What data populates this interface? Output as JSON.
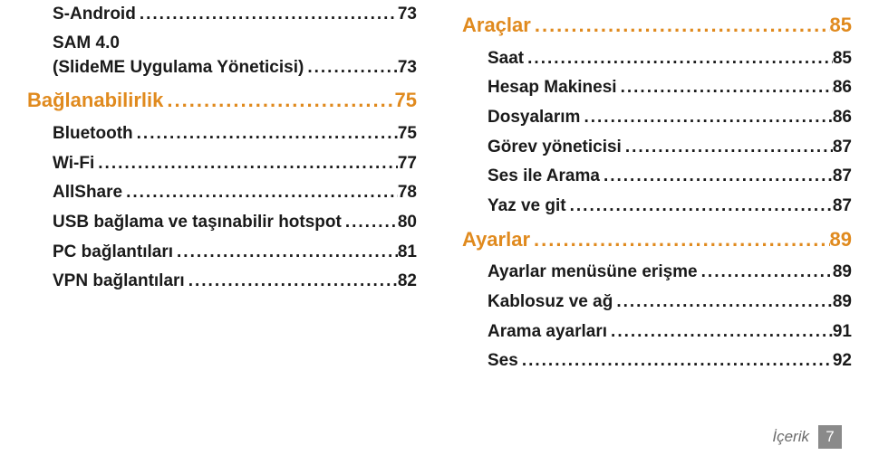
{
  "colors": {
    "sectionAccent": "#e08a1e",
    "textPrimary": "#1a1a1a",
    "footerLabel": "#6b6b6b",
    "footerBoxBg": "#8a8a8a",
    "footerBoxText": "#ffffff",
    "background": "#ffffff"
  },
  "typography": {
    "bodyFontSize": 19,
    "sectionFontSize": 22,
    "footerFontSize": 17
  },
  "dots": "........................................................................................................................",
  "left": {
    "items": [
      {
        "kind": "sub",
        "label": "S-Android",
        "page": "73"
      },
      {
        "kind": "plain",
        "label": "SAM 4.0"
      },
      {
        "kind": "sub",
        "label": "(SlideME Uygulama Yöneticisi)",
        "page": "73"
      },
      {
        "kind": "section",
        "label": "Bağlanabilirlik",
        "page": "75"
      },
      {
        "kind": "sub",
        "label": "Bluetooth",
        "page": "75"
      },
      {
        "kind": "sub",
        "label": "Wi-Fi",
        "page": "77"
      },
      {
        "kind": "sub",
        "label": "AllShare",
        "page": "78"
      },
      {
        "kind": "sub",
        "label": "USB bağlama ve taşınabilir hotspot",
        "page": "80"
      },
      {
        "kind": "sub",
        "label": "PC bağlantıları",
        "page": "81"
      },
      {
        "kind": "sub",
        "label": "VPN bağlantıları",
        "page": "82"
      }
    ]
  },
  "right": {
    "items": [
      {
        "kind": "section",
        "label": "Araçlar",
        "page": "85"
      },
      {
        "kind": "sub",
        "label": "Saat",
        "page": "85"
      },
      {
        "kind": "sub",
        "label": "Hesap Makinesi",
        "page": "86"
      },
      {
        "kind": "sub",
        "label": "Dosyalarım",
        "page": "86"
      },
      {
        "kind": "sub",
        "label": "Görev yöneticisi",
        "page": "87"
      },
      {
        "kind": "sub",
        "label": "Ses ile Arama",
        "page": "87"
      },
      {
        "kind": "sub",
        "label": "Yaz ve git",
        "page": "87"
      },
      {
        "kind": "section",
        "label": "Ayarlar",
        "page": "89"
      },
      {
        "kind": "sub",
        "label": "Ayarlar menüsüne erişme",
        "page": "89"
      },
      {
        "kind": "sub",
        "label": "Kablosuz ve ağ",
        "page": "89"
      },
      {
        "kind": "sub",
        "label": "Arama ayarları",
        "page": "91"
      },
      {
        "kind": "sub",
        "label": "Ses",
        "page": "92"
      }
    ]
  },
  "footer": {
    "label": "İçerik",
    "page": "7"
  }
}
